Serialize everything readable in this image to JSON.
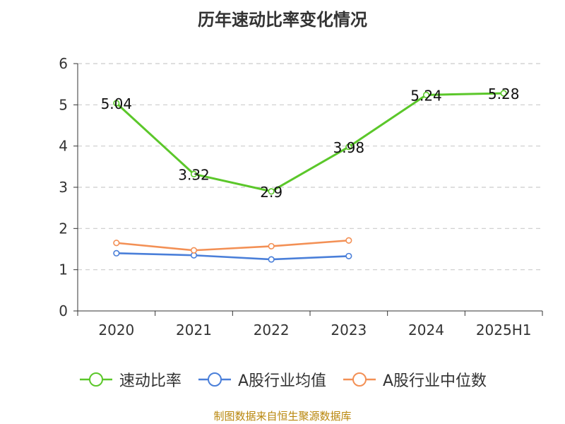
{
  "chart_data": {
    "type": "line",
    "title": "历年速动比率变化情况",
    "categories": [
      "2020",
      "2021",
      "2022",
      "2023",
      "2024",
      "2025H1"
    ],
    "y_ticks": [
      "0",
      "1",
      "2",
      "3",
      "4",
      "5",
      "6"
    ],
    "ylim": [
      0,
      6
    ],
    "grid": "horizontal-dashed",
    "legend_position": "bottom",
    "series": [
      {
        "name": "速动比率",
        "color": "#5bc72a",
        "values": [
          5.04,
          3.32,
          2.9,
          3.98,
          5.24,
          5.28
        ],
        "labels": [
          "5.04",
          "3.32",
          "2.9",
          "3.98",
          "5.24",
          "5.28"
        ]
      },
      {
        "name": "A股行业均值",
        "color": "#4a7fd9",
        "values": [
          1.4,
          1.35,
          1.25,
          1.33,
          null,
          null
        ]
      },
      {
        "name": "A股行业中位数",
        "color": "#f39055",
        "values": [
          1.65,
          1.47,
          1.57,
          1.71,
          null,
          null
        ]
      }
    ]
  },
  "footer": "制图数据来自恒生聚源数据库"
}
